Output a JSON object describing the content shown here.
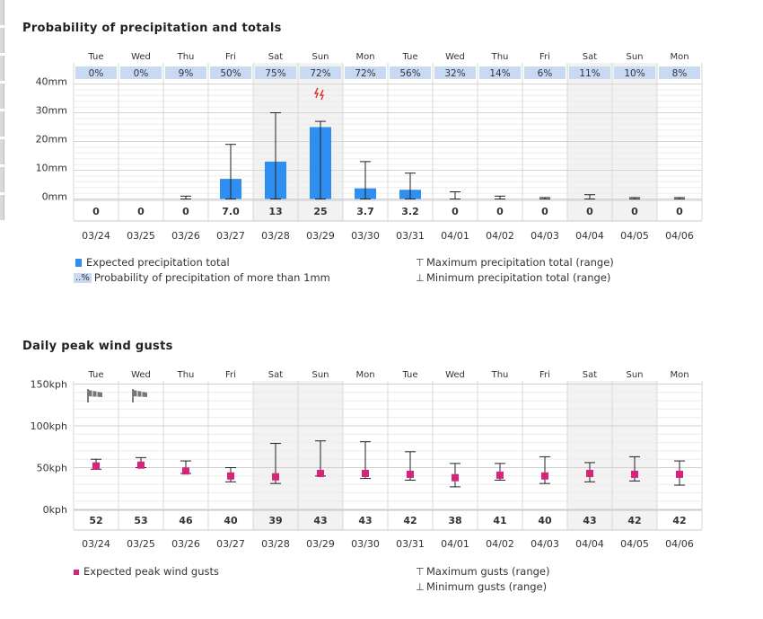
{
  "colors": {
    "bar": "#2f8ff0",
    "pct_bg": "#c9d9f2",
    "wind_marker": "#d6247a",
    "weekend_bg": "#f2f2f2",
    "grid": "#dcdcdc"
  },
  "chart_data": [
    {
      "type": "bar",
      "title": "Probability of precipitation and totals",
      "days": [
        "Tue",
        "Wed",
        "Thu",
        "Fri",
        "Sat",
        "Sun",
        "Mon",
        "Tue",
        "Wed",
        "Thu",
        "Fri",
        "Sat",
        "Sun",
        "Mon"
      ],
      "weekend_days": [
        "Sat",
        "Sun"
      ],
      "probabilities": [
        "0%",
        "0%",
        "9%",
        "50%",
        "75%",
        "72%",
        "72%",
        "56%",
        "32%",
        "14%",
        "6%",
        "11%",
        "10%",
        "8%"
      ],
      "categories": [
        "03/24",
        "03/25",
        "03/26",
        "03/27",
        "03/28",
        "03/29",
        "03/30",
        "03/31",
        "04/01",
        "04/02",
        "04/03",
        "04/04",
        "04/05",
        "04/06"
      ],
      "values": [
        0,
        0,
        0,
        7.0,
        13,
        25,
        3.7,
        3.2,
        0,
        0,
        0,
        0,
        0,
        0
      ],
      "value_labels": [
        "0",
        "0",
        "0",
        "7.0",
        "13",
        "25",
        "3.7",
        "3.2",
        "0",
        "0",
        "0",
        "0",
        "0",
        "0"
      ],
      "max": [
        0,
        0,
        1,
        19,
        30,
        27,
        13,
        9,
        2.5,
        1,
        0.5,
        1.5,
        0.5,
        0.5
      ],
      "min": [
        0,
        0,
        0,
        0,
        0,
        0,
        0,
        0,
        0,
        0,
        0,
        0,
        0,
        0
      ],
      "thunder_icon_day": "03/29",
      "y_ticks": [
        "0mm",
        "10mm",
        "20mm",
        "30mm",
        "40mm"
      ],
      "ylim": [
        0,
        40
      ],
      "legend": {
        "expected": "Expected precipitation total",
        "prob_swatch": "..%",
        "probability": "Probability of precipitation of more than 1mm",
        "max": "Maximum precipitation total (range)",
        "min": "Minimum precipitation total (range)"
      }
    },
    {
      "type": "scatter",
      "title": "Daily peak wind gusts",
      "days": [
        "Tue",
        "Wed",
        "Thu",
        "Fri",
        "Sat",
        "Sun",
        "Mon",
        "Tue",
        "Wed",
        "Thu",
        "Fri",
        "Sat",
        "Sun",
        "Mon"
      ],
      "weekend_days": [
        "Sat",
        "Sun"
      ],
      "categories": [
        "03/24",
        "03/25",
        "03/26",
        "03/27",
        "03/28",
        "03/29",
        "03/30",
        "03/31",
        "04/01",
        "04/02",
        "04/03",
        "04/04",
        "04/05",
        "04/06"
      ],
      "values": [
        52,
        53,
        46,
        40,
        39,
        43,
        43,
        42,
        38,
        41,
        40,
        43,
        42,
        42
      ],
      "max": [
        60,
        62,
        58,
        50,
        79,
        82,
        81,
        69,
        55,
        55,
        63,
        56,
        63,
        58
      ],
      "min": [
        48,
        50,
        43,
        33,
        31,
        40,
        37,
        35,
        27,
        35,
        31,
        33,
        34,
        29
      ],
      "windy_icon_days": [
        "03/24",
        "03/25"
      ],
      "y_ticks": [
        "0kph",
        "50kph",
        "100kph",
        "150kph"
      ],
      "ylim": [
        0,
        150
      ],
      "legend": {
        "expected": "Expected peak wind gusts",
        "max": "Maximum gusts (range)",
        "min": "Minimum gusts (range)"
      }
    }
  ]
}
